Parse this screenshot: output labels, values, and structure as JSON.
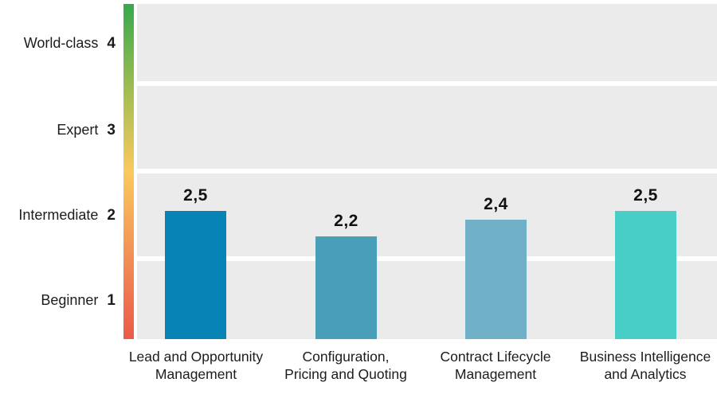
{
  "chart_data": {
    "type": "bar",
    "title": "",
    "xlabel": "",
    "ylabel": "",
    "categories": [
      "Lead and Opportunity Management",
      "Configuration, Pricing and Quoting",
      "Contract Lifecycle Management",
      "Business Intelligence and Analytics"
    ],
    "x_label_lines": [
      [
        "Lead and Opportunity",
        "Management"
      ],
      [
        "Configuration,",
        "Pricing and Quoting"
      ],
      [
        "Contract Lifecycle",
        "Management"
      ],
      [
        "Business Intelligence",
        "and Analytics"
      ]
    ],
    "values": [
      2.5,
      2.2,
      2.4,
      2.5
    ],
    "value_labels": [
      "2,5",
      "2,2",
      "2,4",
      "2,5"
    ],
    "bar_colors": [
      "#0883b5",
      "#4a9fb8",
      "#70b1c7",
      "#48cec7"
    ],
    "y_axis": {
      "range": [
        1,
        4
      ],
      "levels": [
        {
          "name": "World-class",
          "value": "4"
        },
        {
          "name": "Expert",
          "value": "3"
        },
        {
          "name": "Intermediate",
          "value": "2"
        },
        {
          "name": "Beginner",
          "value": "1"
        }
      ]
    },
    "gradient_scale_colors": [
      "#35a94c",
      "#9ebd52",
      "#fbc95e",
      "#f29055",
      "#ec5a4a"
    ],
    "plot_background": "#ebebeb",
    "gridline_color": "#ffffff",
    "legend": "none",
    "grid": "horizontal white bands"
  }
}
